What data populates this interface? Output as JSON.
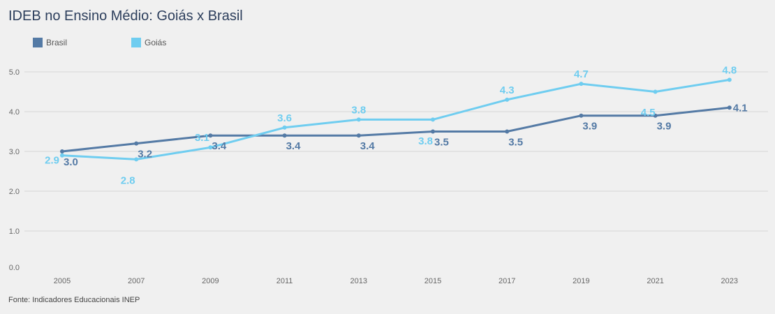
{
  "title": "IDEB no Ensino Médio: Goiás x Brasil",
  "source": "Fonte: Indicadores Educacionais INEP",
  "chart_data": {
    "type": "line",
    "x": [
      "2005",
      "2007",
      "2009",
      "2011",
      "2013",
      "2015",
      "2017",
      "2019",
      "2021",
      "2023"
    ],
    "series": [
      {
        "name": "Brasil",
        "color": "#547aa5",
        "values": [
          3.0,
          3.2,
          3.4,
          3.4,
          3.4,
          3.5,
          3.5,
          3.9,
          3.9,
          4.1
        ]
      },
      {
        "name": "Goiás",
        "color": "#6fcdf0",
        "values": [
          2.9,
          2.8,
          3.1,
          3.6,
          3.8,
          3.8,
          4.3,
          4.7,
          4.5,
          4.8
        ]
      }
    ],
    "ylim": [
      0,
      5
    ],
    "yticks": [
      "0.0",
      "1.0",
      "2.0",
      "3.0",
      "4.0",
      "5.0"
    ],
    "grid": true,
    "legend": "top-left",
    "data_labels": {
      "Brasil": [
        "3.0",
        "3.2",
        "3.4",
        "3.4",
        "3.4",
        "3.5",
        "3.5",
        "3.9",
        "3.9",
        "4.1"
      ],
      "Goiás": [
        "2.9",
        "2.8",
        "3.1",
        "3.6",
        "3.8",
        "3.8",
        "4.3",
        "4.7",
        "4.5",
        "4.8"
      ]
    }
  }
}
